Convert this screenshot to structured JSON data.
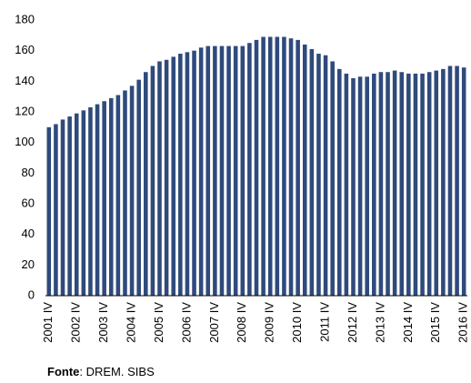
{
  "chart_data": {
    "type": "bar",
    "categories": [
      "2001 IV",
      null,
      null,
      null,
      "2002 IV",
      null,
      null,
      null,
      "2003 IV",
      null,
      null,
      null,
      "2004 IV",
      null,
      null,
      null,
      "2005 IV",
      null,
      null,
      null,
      "2006 IV",
      null,
      null,
      null,
      "2007 IV",
      null,
      null,
      null,
      "2008 IV",
      null,
      null,
      null,
      "2009 IV",
      null,
      null,
      null,
      "2010 IV",
      null,
      null,
      null,
      "2011 IV",
      null,
      null,
      null,
      "2012 IV",
      null,
      null,
      null,
      "2013 IV",
      null,
      null,
      null,
      "2014 IV",
      null,
      null,
      null,
      "2015 IV",
      null,
      null,
      null,
      "2016 IV"
    ],
    "values": [
      110,
      112,
      115,
      117,
      119,
      121,
      123,
      125,
      127,
      129,
      131,
      134,
      137,
      141,
      146,
      150,
      153,
      154,
      156,
      158,
      159,
      160,
      162,
      163,
      163,
      163,
      163,
      163,
      163,
      165,
      167,
      169,
      169,
      169,
      169,
      168,
      167,
      164,
      161,
      158,
      157,
      153,
      148,
      145,
      142,
      143,
      143,
      145,
      146,
      146,
      147,
      146,
      145,
      145,
      145,
      146,
      147,
      148,
      150,
      150,
      149
    ],
    "color": "#2f4a7b",
    "ylim": [
      0,
      180
    ],
    "yticks": [
      0,
      20,
      40,
      60,
      80,
      100,
      120,
      140,
      160,
      180
    ],
    "grid": false,
    "source_label": "Fonte",
    "source": ": DREM. SIBS"
  }
}
